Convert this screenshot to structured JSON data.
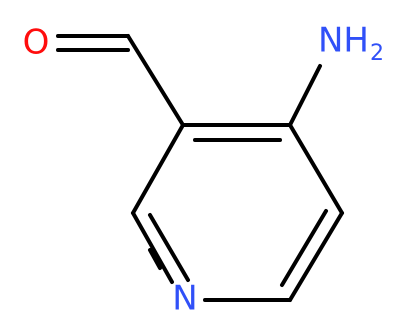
{
  "atoms": [
    {
      "label": "O"
    },
    {
      "label": "NH",
      "subscript": "2"
    },
    {
      "label": "N"
    }
  ]
}
